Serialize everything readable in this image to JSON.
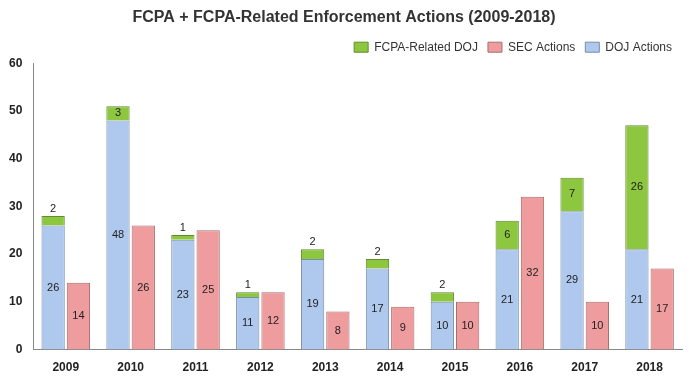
{
  "chart_data": {
    "type": "bar",
    "title": "FCPA + FCPA-Related Enforcement Actions (2009-2018)",
    "categories": [
      "2009",
      "2010",
      "2011",
      "2012",
      "2013",
      "2014",
      "2015",
      "2016",
      "2017",
      "2018"
    ],
    "series": [
      {
        "name": "FCPA-Related DOJ",
        "color": "#8DC63F",
        "values": [
          2,
          3,
          1,
          1,
          2,
          2,
          2,
          6,
          7,
          26
        ]
      },
      {
        "name": "SEC Actions",
        "color": "#EE9C9D",
        "values": [
          14,
          26,
          25,
          12,
          8,
          9,
          10,
          32,
          10,
          17
        ]
      },
      {
        "name": "DOJ Actions",
        "color": "#AFC8EE",
        "values": [
          26,
          48,
          23,
          11,
          19,
          17,
          10,
          21,
          29,
          21
        ]
      }
    ],
    "stacked": [
      [
        "DOJ Actions",
        "FCPA-Related DOJ"
      ],
      [
        "SEC Actions"
      ]
    ],
    "ylim": [
      0,
      60
    ],
    "yticks": [
      0,
      10,
      20,
      30,
      40,
      50,
      60
    ],
    "grid": false,
    "legend": "top-right",
    "data_labels": true
  }
}
